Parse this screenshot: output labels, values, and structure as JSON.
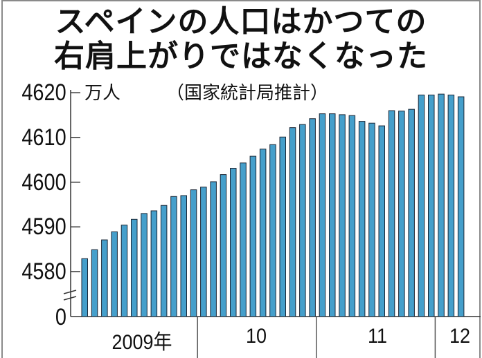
{
  "title": {
    "line1": "スペインの人口はかつての",
    "line2": "右肩上がりではなくなった"
  },
  "unit_label": "万人",
  "source_label": "（国家統計局推計）",
  "colors": {
    "bar_fill": "#459fcb",
    "bar_outline": "#1b2635",
    "axis": "#333333",
    "frame": "#8a8a8a"
  },
  "y_axis": {
    "ticks": [
      "4620",
      "4610",
      "4600",
      "4590",
      "4580",
      "0"
    ],
    "break_marks": true
  },
  "x_axis": {
    "groups": [
      {
        "label": "2009年",
        "count": 12
      },
      {
        "label": "10",
        "count": 12
      },
      {
        "label": "11",
        "count": 12
      },
      {
        "label": "12",
        "count": 3
      }
    ]
  },
  "chart_data": {
    "type": "bar",
    "title": "スペインの人口はかつての右肩上がりではなくなった",
    "subtitle": "（国家統計局推計）",
    "xlabel": "",
    "ylabel": "万人",
    "ylim": [
      4580,
      4620
    ],
    "y_axis_break": "0 to 4580 omitted",
    "yticks": [
      0,
      4580,
      4590,
      4600,
      4610,
      4620
    ],
    "grid": false,
    "legend": null,
    "x_group_labels": [
      "2009年",
      "10",
      "11",
      "12"
    ],
    "categories": [
      "2009-01",
      "2009-02",
      "2009-03",
      "2009-04",
      "2009-05",
      "2009-06",
      "2009-07",
      "2009-08",
      "2009-09",
      "2009-10",
      "2009-11",
      "2009-12",
      "2010-01",
      "2010-02",
      "2010-03",
      "2010-04",
      "2010-05",
      "2010-06",
      "2010-07",
      "2010-08",
      "2010-09",
      "2010-10",
      "2010-11",
      "2010-12",
      "2011-01",
      "2011-02",
      "2011-03",
      "2011-04",
      "2011-05",
      "2011-06",
      "2011-07",
      "2011-08",
      "2011-09",
      "2011-10",
      "2011-11",
      "2011-12",
      "2012-01",
      "2012-02",
      "2012-03"
    ],
    "values": [
      4582.9,
      4584.9,
      4587.1,
      4588.9,
      4590.4,
      4591.7,
      4593.0,
      4593.6,
      4594.8,
      4596.8,
      4597.0,
      4598.3,
      4598.9,
      4600.1,
      4601.7,
      4603.1,
      4604.3,
      4605.8,
      4607.4,
      4608.4,
      4610.1,
      4612.2,
      4612.9,
      4614.2,
      4615.3,
      4615.3,
      4615.1,
      4614.9,
      4613.6,
      4613.2,
      4612.6,
      4616.0,
      4615.9,
      4616.3,
      4619.5,
      4619.5,
      4619.7,
      4619.5,
      4619.1
    ]
  }
}
